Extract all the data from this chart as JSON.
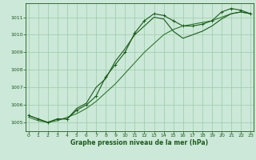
{
  "line_upper": {
    "x": [
      0,
      1,
      2,
      3,
      4,
      5,
      6,
      7,
      8,
      9,
      10,
      11,
      12,
      13,
      14,
      15,
      16,
      17,
      18,
      19,
      20,
      21,
      22,
      23
    ],
    "y": [
      1005.4,
      1005.2,
      1005.0,
      1005.2,
      1005.2,
      1005.7,
      1006.0,
      1006.5,
      1007.6,
      1008.3,
      1009.0,
      1010.1,
      1010.8,
      1011.2,
      1011.1,
      1010.8,
      1010.5,
      1010.5,
      1010.6,
      1010.8,
      1011.3,
      1011.5,
      1011.4,
      1011.2
    ]
  },
  "line_mid": {
    "x": [
      0,
      1,
      2,
      3,
      4,
      5,
      6,
      7,
      8,
      9,
      10,
      11,
      12,
      13,
      14,
      15,
      16,
      17,
      18,
      19,
      20,
      21,
      22,
      23
    ],
    "y": [
      1005.4,
      1005.2,
      1005.0,
      1005.2,
      1005.2,
      1005.8,
      1006.1,
      1007.0,
      1007.5,
      1008.5,
      1009.2,
      1010.0,
      1010.5,
      1011.0,
      1010.9,
      1010.2,
      1009.8,
      1010.0,
      1010.2,
      1010.5,
      1010.9,
      1011.2,
      1011.3,
      1011.2
    ]
  },
  "line_low": {
    "x": [
      0,
      1,
      2,
      3,
      4,
      5,
      6,
      7,
      8,
      9,
      10,
      11,
      12,
      13,
      14,
      15,
      16,
      17,
      18,
      19,
      20,
      21,
      22,
      23
    ],
    "y": [
      1005.3,
      1005.1,
      1005.0,
      1005.1,
      1005.3,
      1005.5,
      1005.8,
      1006.2,
      1006.7,
      1007.2,
      1007.8,
      1008.4,
      1009.0,
      1009.5,
      1010.0,
      1010.3,
      1010.5,
      1010.6,
      1010.7,
      1010.8,
      1011.0,
      1011.2,
      1011.3,
      1011.2
    ]
  },
  "bg_color": "#cce8d8",
  "grid_color": "#99ccaa",
  "line_color_dark": "#1a5c1a",
  "line_color_mid": "#2d7a2d",
  "ylim": [
    1004.5,
    1011.8
  ],
  "xlim": [
    -0.3,
    23.3
  ],
  "yticks": [
    1005,
    1006,
    1007,
    1008,
    1009,
    1010,
    1011
  ],
  "xticks": [
    0,
    1,
    2,
    3,
    4,
    5,
    6,
    7,
    8,
    9,
    10,
    11,
    12,
    13,
    14,
    15,
    16,
    17,
    18,
    19,
    20,
    21,
    22,
    23
  ],
  "xlabel": "Graphe pression niveau de la mer (hPa)"
}
